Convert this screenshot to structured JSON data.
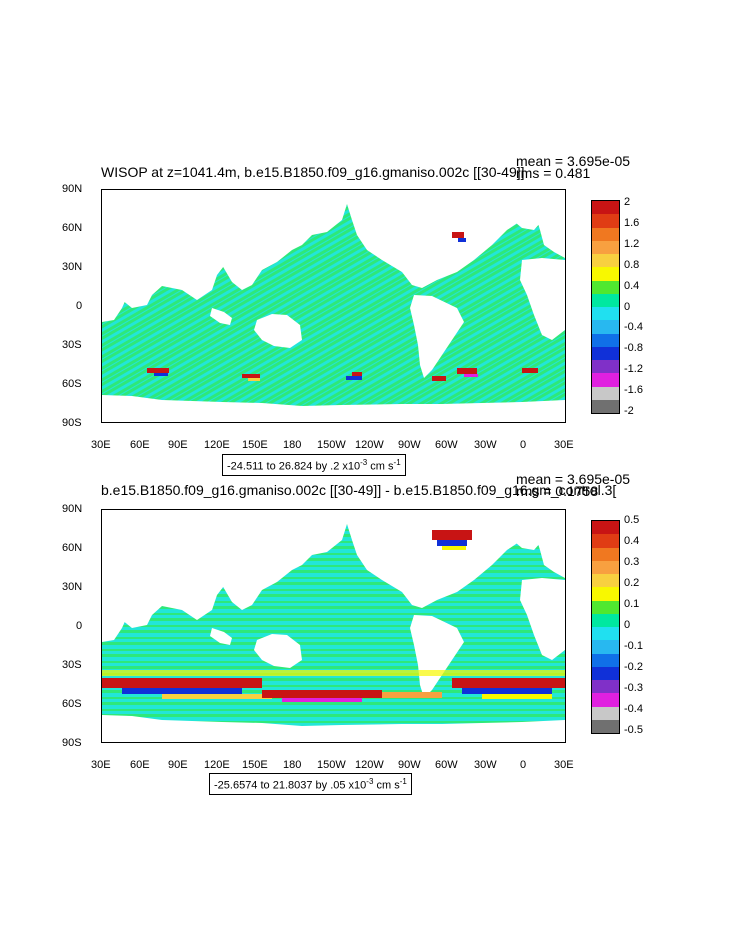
{
  "panels": [
    {
      "title": "WISOP at z=1041.4m, b.e15.B1850.f09_g16.gmaniso.002c [[30-49]]",
      "mean": "mean = 3.695e-05",
      "rms": "rms = 0.481",
      "range_prefix": "-24.511 to 26.824 by .2 x10",
      "range_exp": "-3",
      "range_unit_a": " cm s",
      "range_unit_exp": "-1",
      "colorbar_labels": [
        "2",
        "1.6",
        "1.2",
        "0.8",
        "0.4",
        "0",
        "-0.4",
        "-0.8",
        "-1.2",
        "-1.6",
        "-2"
      ]
    },
    {
      "title": "b.e15.B1850.f09_g16.gmaniso.002c [[30-49]] - b.e15.B1850.f09_g16.gm_control.3[",
      "mean": "mean = 3.695e-05",
      "rms": "rms = 0.1758",
      "range_prefix": "-25.6574 to 21.8037 by .05 x10",
      "range_exp": "-3",
      "range_unit_a": " cm s",
      "range_unit_exp": "-1",
      "colorbar_labels": [
        "0.5",
        "0.4",
        "0.3",
        "0.2",
        "0.1",
        "0",
        "-0.1",
        "-0.2",
        "-0.3",
        "-0.4",
        "-0.5"
      ]
    }
  ],
  "lat_labels": [
    "90N",
    "60N",
    "30N",
    "0",
    "30S",
    "60S",
    "90S"
  ],
  "lon_labels": [
    "30E",
    "60E",
    "90E",
    "120E",
    "150E",
    "180",
    "150W",
    "120W",
    "90W",
    "60W",
    "30W",
    "0",
    "30E"
  ],
  "colors": {
    "colorbar": [
      "#c81414",
      "#e03c14",
      "#f07820",
      "#f8a040",
      "#f8d040",
      "#f8f800",
      "#50e830",
      "#00e8a0",
      "#20e0f0",
      "#28b8f0",
      "#1070e8",
      "#1030d8",
      "#8030c8",
      "#e020e0",
      "#c8c8c8",
      "#707070"
    ],
    "ocean_main": "#2ee87a",
    "ocean_alt": "#22e6d8"
  }
}
